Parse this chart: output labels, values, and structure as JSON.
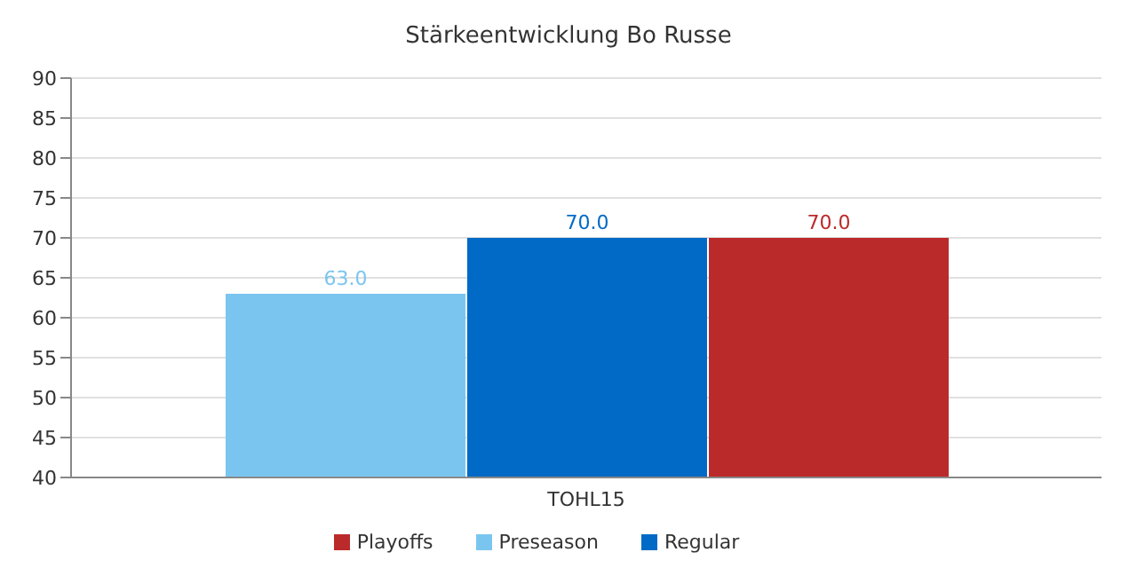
{
  "chart_data": {
    "type": "bar",
    "title": "Stärkeentwicklung Bo Russe",
    "categories": [
      "TOHL15"
    ],
    "series": [
      {
        "name": "Preseason",
        "color": "#7ac5f0",
        "values": [
          63
        ],
        "value_labels": [
          "63.0"
        ]
      },
      {
        "name": "Regular",
        "color": "#006ac6",
        "values": [
          70
        ],
        "value_labels": [
          "70.0"
        ]
      },
      {
        "name": "Playoffs",
        "color": "#bb2a2a",
        "values": [
          70
        ],
        "value_labels": [
          "70.0"
        ]
      }
    ],
    "ylim": [
      40,
      90
    ],
    "yticks": [
      40,
      45,
      50,
      55,
      60,
      65,
      70,
      75,
      80,
      85,
      90
    ],
    "grid": "y",
    "legend": "bottom"
  }
}
